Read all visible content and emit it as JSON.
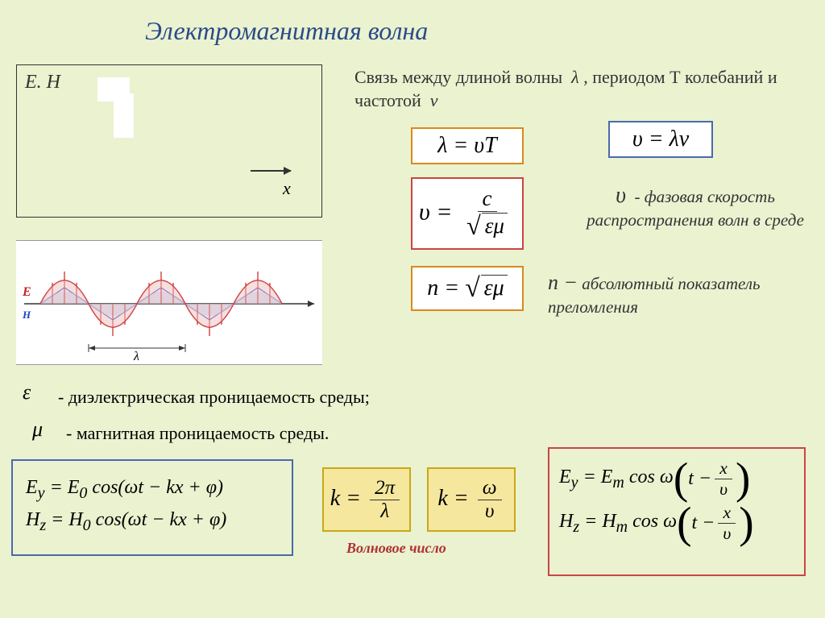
{
  "title": "Электромагнитная волна",
  "eh_box": {
    "label": "E. H",
    "axis": "x"
  },
  "relation_text": "Связь между длиной волны&nbsp;&nbsp;<i>λ</i> , периодом Т колебаний и частотой&nbsp;&nbsp;<i>ν</i>",
  "formulas": {
    "lambda": "λ = υT",
    "vlam": "υ = λν",
    "phase": {
      "lhs": "υ",
      "num": "c",
      "den_sym": "εμ"
    },
    "n": {
      "lhs": "n",
      "sym": "εμ"
    }
  },
  "phase_desc_sym": "υ",
  "phase_desc": "- фазовая скорость распространения волн в среде",
  "n_desc_sym": "n −",
  "n_desc": "абсолютный показатель преломления",
  "eps": {
    "sym": "ε",
    "text": "- диэлектрическая проницаемость среды;"
  },
  "mu": {
    "sym": "μ",
    "text": "- магнитная проницаемость среды."
  },
  "eh_formulas": {
    "e": "E<sub>y</sub> = E<sub>0</sub> cos(ωt − kx + φ)",
    "h": "H<sub>z</sub> = H<sub>0</sub> cos(ωt − kx + φ)"
  },
  "k1": {
    "lhs": "k",
    "num": "2π",
    "den": "λ"
  },
  "k2": {
    "lhs": "k",
    "num": "ω",
    "den": "υ"
  },
  "wavenum_label": "Волновое число",
  "eh2": {
    "e": {
      "lhs": "E<sub>y</sub> = E<sub>m</sub> cos ω",
      "inner_lhs": "t −",
      "num": "x",
      "den": "υ"
    },
    "h": {
      "lhs": "H<sub>z</sub> = H<sub>m</sub> cos ω",
      "inner_lhs": "t −",
      "num": "x",
      "den": "υ"
    }
  },
  "colors": {
    "bg": "#eaf2d0",
    "title": "#2a4a8a",
    "orange_border": "#d98a1a",
    "blue_border": "#4a6aaa",
    "red_border": "#c44",
    "yellow_fill": "#f5e79e",
    "wavenum": "#b03030"
  },
  "wave": {
    "e_color": "#c82020",
    "h_color": "#2040c8",
    "lambda_label": "λ",
    "e_label": "E",
    "h_label": "H"
  }
}
